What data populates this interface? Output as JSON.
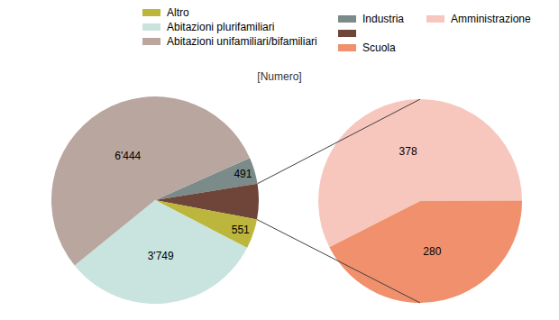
{
  "chart_data": [
    {
      "type": "pie",
      "title": "[Numero]",
      "legend": "top",
      "data_labels": true,
      "categories": [
        "Industria",
        null,
        "Altro",
        "Abitazioni plurifamiliari",
        "Abitazioni unifamiliari/bifamiliari"
      ],
      "values": [
        491,
        658,
        551,
        3749,
        6444
      ],
      "value_labels": [
        "491",
        null,
        "551",
        "3'749",
        "6'444"
      ],
      "colors": [
        "#7b8b89",
        "#6e4538",
        "#bdb63c",
        "#c9e3df",
        "#b9a69e"
      ]
    },
    {
      "type": "pie",
      "data_labels": true,
      "categories": [
        "Amministrazione",
        "Scuola"
      ],
      "values": [
        378,
        280
      ],
      "colors": [
        "#f7c7be",
        "#f0906d"
      ]
    }
  ]
}
